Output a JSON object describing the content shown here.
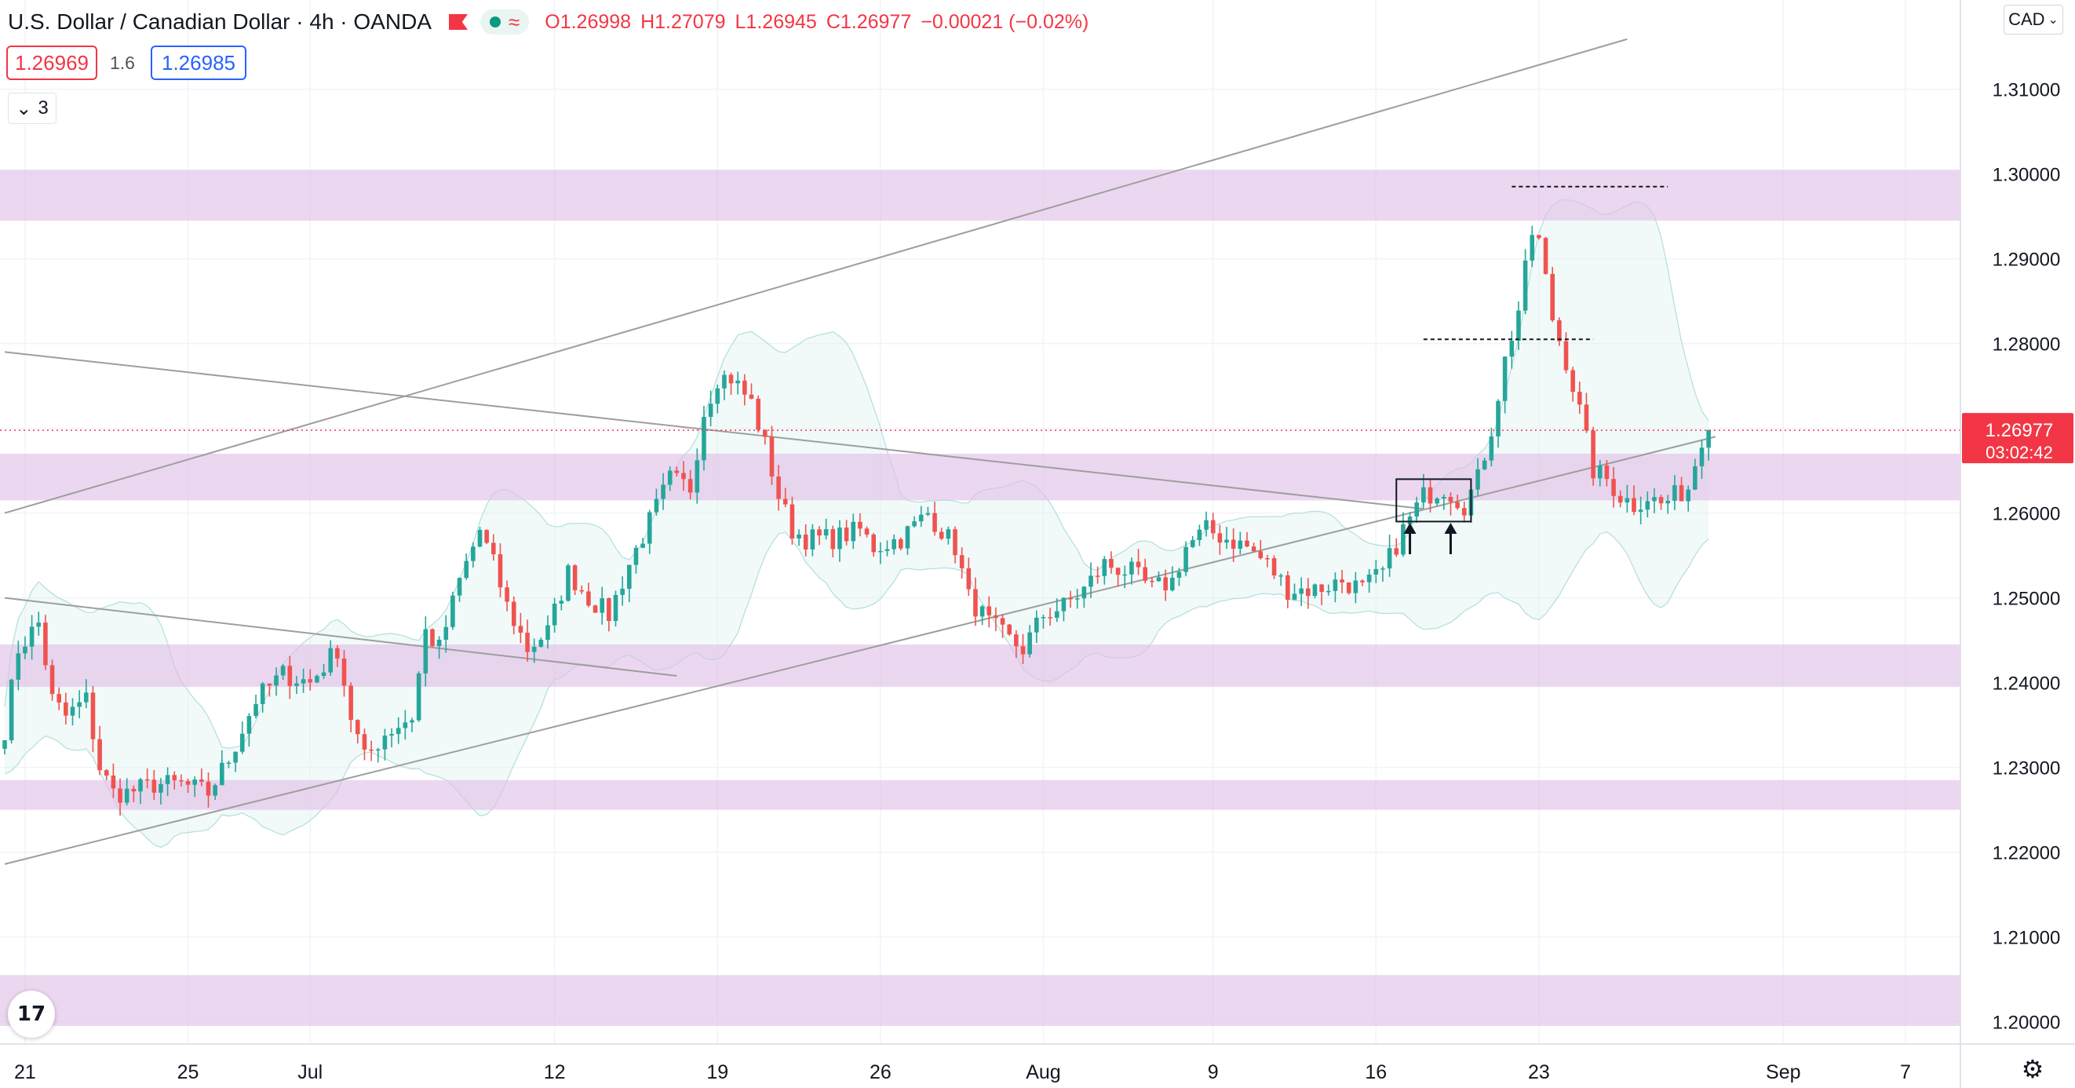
{
  "header": {
    "symbol": "U.S. Dollar / Canadian Dollar · 4h · OANDA",
    "ohlc": {
      "o": "O1.26998",
      "h": "H1.27079",
      "l": "L1.26945",
      "c": "C1.26977",
      "change": "−0.00021 (−0.02%)"
    },
    "sell_price": "1.26969",
    "spread": "1.6",
    "buy_price": "1.26985",
    "indicators_count": "3",
    "currency": "CAD"
  },
  "colors": {
    "up": "#26a69a",
    "down": "#ef5350",
    "zone": "#e1bee7",
    "band": "#e0f2f1",
    "band_line": "#b2dfdb",
    "trend": "#9e9e9e",
    "price": "#f23645",
    "grid": "#f0f3fa"
  },
  "icons": {
    "logo": "tradingview-logo-icon",
    "settings": "gear-icon",
    "indicators": "chevron-down-icon",
    "alert": "flag-icon"
  },
  "chart_data": {
    "type": "candlestick",
    "ylim": [
      1.197,
      1.317
    ],
    "y_ticks": [
      "1.31000",
      "1.30000",
      "1.29000",
      "1.28000",
      "1.27000",
      "1.26000",
      "1.25000",
      "1.24000",
      "1.23000",
      "1.22000",
      "1.21000",
      "1.20000"
    ],
    "x_ticks": [
      {
        "label": "21",
        "bar": 3
      },
      {
        "label": "25",
        "bar": 27
      },
      {
        "label": "Jul",
        "bar": 45
      },
      {
        "label": "12",
        "bar": 81
      },
      {
        "label": "19",
        "bar": 105
      },
      {
        "label": "26",
        "bar": 129
      },
      {
        "label": "Aug",
        "bar": 153
      },
      {
        "label": "9",
        "bar": 178
      },
      {
        "label": "16",
        "bar": 202
      },
      {
        "label": "23",
        "bar": 226
      },
      {
        "label": "Sep",
        "bar": 262
      },
      {
        "label": "7",
        "bar": 280
      }
    ],
    "bar_count": 290,
    "last_price": "1.26977",
    "countdown": "03:02:42",
    "path_anchors": [
      [
        0,
        1.2345
      ],
      [
        2,
        1.244
      ],
      [
        5,
        1.247
      ],
      [
        7,
        1.238
      ],
      [
        9,
        1.236
      ],
      [
        12,
        1.238
      ],
      [
        14,
        1.23
      ],
      [
        16,
        1.227
      ],
      [
        18,
        1.227
      ],
      [
        22,
        1.228
      ],
      [
        26,
        1.228
      ],
      [
        30,
        1.227
      ],
      [
        33,
        1.231
      ],
      [
        37,
        1.238
      ],
      [
        41,
        1.241
      ],
      [
        45,
        1.24
      ],
      [
        49,
        1.244
      ],
      [
        51,
        1.236
      ],
      [
        53,
        1.231
      ],
      [
        56,
        1.234
      ],
      [
        60,
        1.236
      ],
      [
        62,
        1.246
      ],
      [
        64,
        1.244
      ],
      [
        67,
        1.252
      ],
      [
        70,
        1.258
      ],
      [
        72,
        1.254
      ],
      [
        74,
        1.249
      ],
      [
        77,
        1.244
      ],
      [
        80,
        1.246
      ],
      [
        83,
        1.253
      ],
      [
        86,
        1.25
      ],
      [
        89,
        1.248
      ],
      [
        92,
        1.254
      ],
      [
        95,
        1.259
      ],
      [
        98,
        1.264
      ],
      [
        101,
        1.263
      ],
      [
        103,
        1.272
      ],
      [
        105,
        1.276
      ],
      [
        107,
        1.276
      ],
      [
        110,
        1.273
      ],
      [
        112,
        1.268
      ],
      [
        114,
        1.262
      ],
      [
        116,
        1.258
      ],
      [
        118,
        1.257
      ],
      [
        122,
        1.257
      ],
      [
        126,
        1.258
      ],
      [
        128,
        1.256
      ],
      [
        132,
        1.257
      ],
      [
        136,
        1.26
      ],
      [
        140,
        1.256
      ],
      [
        142,
        1.25
      ],
      [
        145,
        1.247
      ],
      [
        148,
        1.245
      ],
      [
        150,
        1.244
      ],
      [
        153,
        1.248
      ],
      [
        156,
        1.249
      ],
      [
        159,
        1.251
      ],
      [
        162,
        1.254
      ],
      [
        166,
        1.253
      ],
      [
        169,
        1.251
      ],
      [
        172,
        1.252
      ],
      [
        174,
        1.256
      ],
      [
        177,
        1.258
      ],
      [
        180,
        1.257
      ],
      [
        183,
        1.256
      ],
      [
        186,
        1.254
      ],
      [
        189,
        1.251
      ],
      [
        193,
        1.251
      ],
      [
        197,
        1.252
      ],
      [
        200,
        1.251
      ],
      [
        203,
        1.253
      ],
      [
        206,
        1.258
      ],
      [
        209,
        1.262
      ],
      [
        212,
        1.263
      ],
      [
        215,
        1.261
      ],
      [
        217,
        1.264
      ],
      [
        219,
        1.27
      ],
      [
        221,
        1.278
      ],
      [
        223,
        1.284
      ],
      [
        225,
        1.293
      ],
      [
        226,
        1.292
      ],
      [
        228,
        1.283
      ],
      [
        230,
        1.278
      ],
      [
        232,
        1.272
      ],
      [
        234,
        1.265
      ],
      [
        236,
        1.264
      ],
      [
        238,
        1.262
      ],
      [
        240,
        1.261
      ],
      [
        242,
        1.262
      ],
      [
        244,
        1.261
      ],
      [
        246,
        1.262
      ],
      [
        248,
        1.263
      ],
      [
        250,
        1.269
      ],
      [
        251,
        1.2698
      ]
    ],
    "zones": [
      {
        "low": 1.2945,
        "high": 1.3005
      },
      {
        "low": 1.2615,
        "high": 1.267
      },
      {
        "low": 1.2395,
        "high": 1.2445
      },
      {
        "low": 1.225,
        "high": 1.2285
      },
      {
        "low": 1.1995,
        "high": 1.2055
      }
    ],
    "trendlines": [
      {
        "from": [
          0,
          1.26
        ],
        "to": [
          239,
          1.3159
        ]
      },
      {
        "from": [
          0,
          1.2186
        ],
        "to": [
          252,
          1.269
        ]
      },
      {
        "from": [
          0,
          1.279
        ],
        "to": [
          209,
          1.2605
        ]
      },
      {
        "from": [
          0,
          1.25
        ],
        "to": [
          99,
          1.2408
        ]
      }
    ],
    "dashed_levels": [
      {
        "price": 1.2985,
        "from": 222,
        "to": 245
      },
      {
        "price": 1.2805,
        "from": 209,
        "to": 234
      }
    ],
    "consolidation_box": {
      "from": 205,
      "to": 216,
      "low": 1.259,
      "high": 1.264
    },
    "arrows": [
      207,
      213
    ]
  }
}
